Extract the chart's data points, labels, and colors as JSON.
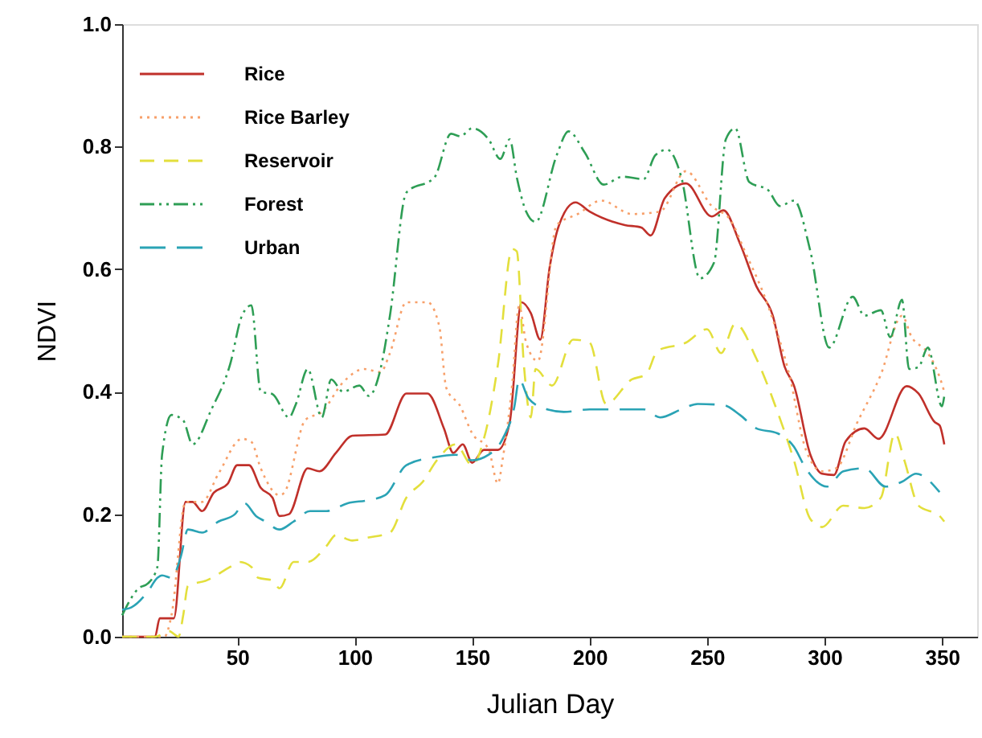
{
  "chart_data": {
    "type": "line",
    "xlabel": "Julian Day",
    "ylabel": "NDVI",
    "xlim": [
      1,
      365
    ],
    "xticks": [
      50,
      100,
      150,
      200,
      250,
      300,
      350
    ],
    "ylim": [
      0,
      1
    ],
    "yticks": [
      {
        "value": 0,
        "label": "0.0"
      },
      {
        "value": 0.2,
        "label": "0.2"
      },
      {
        "value": 0.4,
        "label": "0.4"
      },
      {
        "value": 0.6,
        "label": "0.6"
      },
      {
        "value": 0.8,
        "label": "0.8"
      },
      {
        "value": 1,
        "label": "1.0"
      }
    ],
    "grid": false,
    "legend": "top left",
    "marker": "none",
    "series": [
      {
        "name": "Rice",
        "color": "#c0302a",
        "line_style": "solid",
        "x": [
          1,
          15,
          17,
          23,
          28,
          31,
          35,
          40,
          46,
          50,
          55,
          60,
          65,
          68,
          72,
          80,
          85,
          92,
          99,
          113,
          122,
          131,
          138,
          142,
          146,
          150,
          155,
          161,
          166,
          171,
          175,
          179,
          183,
          187,
          194,
          200,
          215,
          222,
          226,
          232,
          241,
          252,
          257,
          264,
          271,
          278,
          283,
          287,
          294,
          299,
          304,
          309,
          317,
          323,
          335,
          340,
          347,
          349,
          351
        ],
        "values": [
          0,
          0,
          0.03,
          0.03,
          0.22,
          0.22,
          0.205,
          0.235,
          0.25,
          0.28,
          0.28,
          0.243,
          0.227,
          0.197,
          0.2,
          0.275,
          0.27,
          0.3,
          0.328,
          0.33,
          0.397,
          0.397,
          0.34,
          0.3,
          0.314,
          0.284,
          0.305,
          0.305,
          0.35,
          0.546,
          0.528,
          0.485,
          0.603,
          0.672,
          0.709,
          0.694,
          0.672,
          0.668,
          0.655,
          0.716,
          0.74,
          0.686,
          0.696,
          0.642,
          0.572,
          0.524,
          0.441,
          0.41,
          0.297,
          0.266,
          0.264,
          0.319,
          0.34,
          0.323,
          0.409,
          0.397,
          0.35,
          0.345,
          0.314
        ]
      },
      {
        "name": "Rice Barley",
        "color": "#f7a06a",
        "line_style": "dotted",
        "x": [
          1,
          19,
          22,
          28,
          35,
          42,
          52,
          56,
          60,
          68,
          70,
          79,
          86,
          95,
          104,
          111,
          115,
          122,
          131,
          136,
          139,
          145,
          150,
          157,
          161,
          163,
          167,
          170,
          173,
          178,
          186,
          195,
          205,
          218,
          230,
          241,
          252,
          260,
          266,
          276,
          285,
          292,
          299,
          305,
          314,
          324,
          333,
          337,
          344,
          349,
          351
        ],
        "values": [
          0,
          0,
          0.035,
          0.22,
          0.22,
          0.266,
          0.323,
          0.318,
          0.275,
          0.231,
          0.235,
          0.354,
          0.367,
          0.415,
          0.437,
          0.432,
          0.463,
          0.546,
          0.546,
          0.507,
          0.406,
          0.376,
          0.332,
          0.306,
          0.25,
          0.29,
          0.41,
          0.54,
          0.48,
          0.45,
          0.672,
          0.69,
          0.712,
          0.69,
          0.694,
          0.76,
          0.703,
          0.68,
          0.63,
          0.54,
          0.428,
          0.306,
          0.27,
          0.275,
          0.35,
          0.428,
          0.524,
          0.49,
          0.463,
          0.424,
          0.4
        ]
      },
      {
        "name": "Reservoir",
        "color": "#e3df3c",
        "line_style": "dashed",
        "x": [
          1,
          15,
          21,
          25,
          27,
          29,
          37,
          47,
          51,
          56,
          59,
          65,
          68,
          74,
          80,
          88,
          92,
          99,
          106,
          115,
          122,
          129,
          135,
          143,
          150,
          155,
          161,
          167,
          169,
          172,
          175,
          177,
          184,
          193,
          200,
          207,
          218,
          224,
          229,
          241,
          250,
          256,
          262,
          271,
          280,
          287,
          294,
          299,
          308,
          317,
          324,
          330,
          334,
          340,
          349,
          351
        ],
        "values": [
          0,
          0,
          0.009,
          0,
          0.035,
          0.083,
          0.092,
          0.114,
          0.122,
          0.114,
          0.096,
          0.092,
          0.079,
          0.122,
          0.122,
          0.148,
          0.166,
          0.157,
          0.162,
          0.17,
          0.227,
          0.253,
          0.288,
          0.314,
          0.28,
          0.323,
          0.445,
          0.633,
          0.629,
          0.445,
          0.358,
          0.437,
          0.41,
          0.485,
          0.48,
          0.38,
          0.42,
          0.428,
          0.467,
          0.48,
          0.502,
          0.463,
          0.511,
          0.454,
          0.367,
          0.288,
          0.192,
          0.179,
          0.214,
          0.21,
          0.227,
          0.332,
          0.288,
          0.214,
          0.197,
          0.188
        ]
      },
      {
        "name": "Forest",
        "color": "#2e9e55",
        "line_style": "dashdot",
        "x": [
          1,
          8,
          12,
          16,
          18,
          22,
          27,
          31,
          39,
          47,
          52,
          56,
          60,
          65,
          72,
          75,
          80,
          86,
          90,
          95,
          102,
          106,
          111,
          115,
          122,
          134,
          141,
          145,
          150,
          157,
          162,
          166,
          169,
          173,
          177,
          186,
          191,
          198,
          206,
          214,
          223,
          228,
          233,
          239,
          247,
          253,
          258,
          262,
          268,
          276,
          281,
          287,
          294,
          302,
          312,
          317,
          324,
          328,
          333,
          336,
          340,
          344,
          350,
          351
        ],
        "values": [
          0.035,
          0.079,
          0.087,
          0.114,
          0.297,
          0.362,
          0.353,
          0.314,
          0.371,
          0.445,
          0.524,
          0.541,
          0.4,
          0.396,
          0.358,
          0.38,
          0.437,
          0.358,
          0.42,
          0.4,
          0.41,
          0.393,
          0.437,
          0.524,
          0.725,
          0.75,
          0.821,
          0.817,
          0.83,
          0.812,
          0.78,
          0.812,
          0.75,
          0.694,
          0.677,
          0.786,
          0.825,
          0.79,
          0.738,
          0.751,
          0.747,
          0.786,
          0.795,
          0.751,
          0.585,
          0.611,
          0.812,
          0.83,
          0.742,
          0.729,
          0.703,
          0.712,
          0.629,
          0.472,
          0.555,
          0.524,
          0.533,
          0.489,
          0.55,
          0.437,
          0.44,
          0.472,
          0.376,
          0.393
        ]
      },
      {
        "name": "Urban",
        "color": "#2aa3b5",
        "line_style": "longdash",
        "x": [
          1,
          5,
          12,
          16,
          18,
          22,
          26,
          29,
          35,
          42,
          49,
          53,
          58,
          62,
          68,
          74,
          81,
          88,
          97,
          106,
          113,
          122,
          134,
          143,
          150,
          157,
          163,
          168,
          170,
          174,
          182,
          189,
          200,
          223,
          230,
          239,
          246,
          257,
          264,
          271,
          280,
          287,
          292,
          301,
          308,
          317,
          326,
          333,
          339,
          349
        ],
        "values": [
          0.044,
          0.048,
          0.074,
          0.096,
          0.1,
          0.096,
          0.131,
          0.175,
          0.17,
          0.188,
          0.2,
          0.218,
          0.197,
          0.188,
          0.175,
          0.188,
          0.205,
          0.205,
          0.218,
          0.223,
          0.231,
          0.28,
          0.293,
          0.297,
          0.288,
          0.297,
          0.323,
          0.376,
          0.42,
          0.389,
          0.371,
          0.367,
          0.371,
          0.371,
          0.358,
          0.371,
          0.38,
          0.378,
          0.362,
          0.34,
          0.332,
          0.31,
          0.275,
          0.245,
          0.27,
          0.275,
          0.245,
          0.253,
          0.266,
          0.236
        ]
      }
    ]
  }
}
